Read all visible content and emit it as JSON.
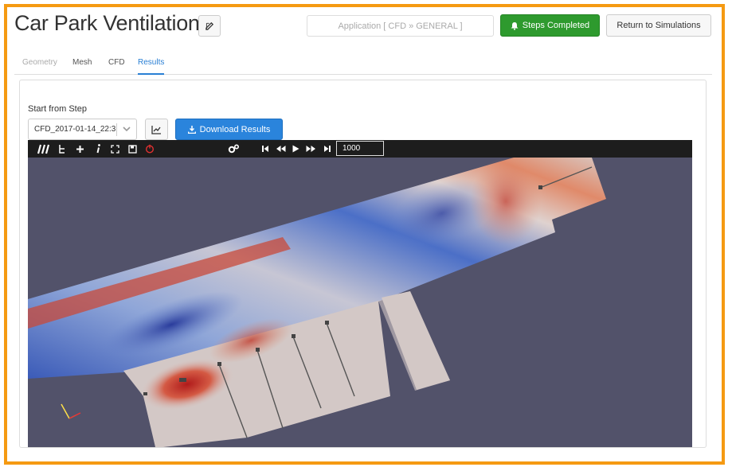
{
  "header": {
    "title": "Car Park Ventilation",
    "application": "Application [ CFD » GENERAL ]",
    "steps_completed": "Steps Completed",
    "return_label": "Return to Simulations"
  },
  "tabs": [
    {
      "label": "Geometry",
      "state": "disabled"
    },
    {
      "label": "Mesh",
      "state": "normal"
    },
    {
      "label": "CFD",
      "state": "normal"
    },
    {
      "label": "Results",
      "state": "active"
    }
  ],
  "controls": {
    "start_label": "Start from Step",
    "step_value": "CFD_2017-01-14_22:3",
    "download_label": "Download Results"
  },
  "viewer": {
    "frame_value": "1000",
    "background_color": "#52526a",
    "icons": [
      "logo-icon",
      "tree-icon",
      "plus-icon",
      "info-icon",
      "fullscreen-icon",
      "save-icon",
      "power-icon",
      "settings-icon",
      "first-frame-icon",
      "rewind-icon",
      "play-icon",
      "fast-forward-icon",
      "last-frame-icon"
    ]
  },
  "colors": {
    "accent": "#2a84dc",
    "success": "#2e9a2e",
    "frame": "#f59a12"
  }
}
